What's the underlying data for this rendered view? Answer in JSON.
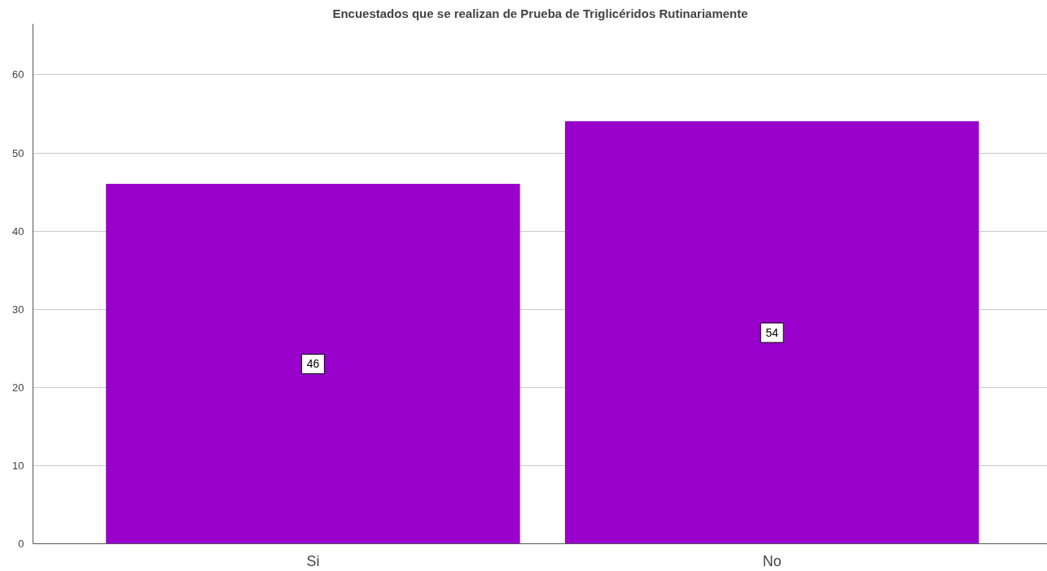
{
  "chart_data": {
    "type": "bar",
    "title": "Encuestados que se realizan de Prueba de Triglicéridos Rutinariamente",
    "categories": [
      "Si",
      "No"
    ],
    "values": [
      46,
      54
    ],
    "color": "#9900cc",
    "ylim": [
      0,
      66.5
    ],
    "yticks": [
      0,
      10,
      20,
      30,
      40,
      50,
      60
    ],
    "grid": "y",
    "data_labels": true
  }
}
